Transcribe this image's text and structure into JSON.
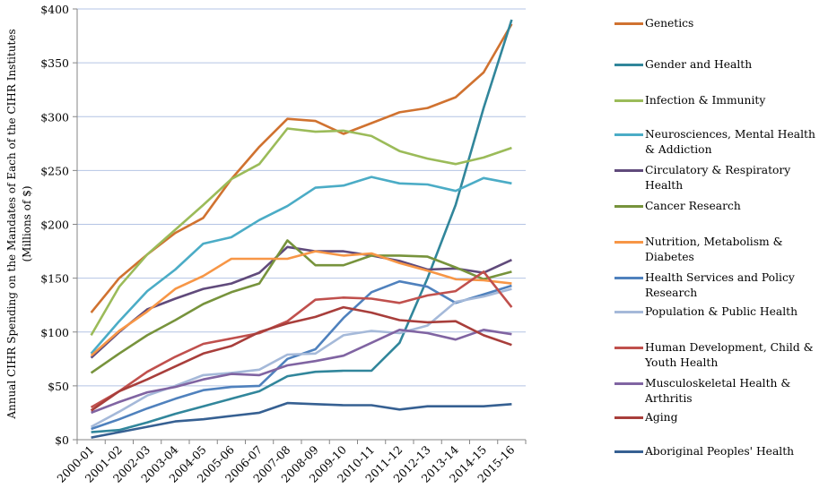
{
  "chart_data": {
    "type": "line",
    "title": "",
    "xlabel": "",
    "ylabel": "Annual CIHR Spending on the Mandates of Each of the CIHR Institutes",
    "ylabel_line2": "(Millions of $)",
    "ylim": [
      0,
      400
    ],
    "yticks": [
      0,
      50,
      100,
      150,
      200,
      250,
      300,
      350,
      400
    ],
    "ytick_labels": [
      "$0",
      "$50",
      "$100",
      "$150",
      "$200",
      "$250",
      "$300",
      "$350",
      "$400"
    ],
    "grid": true,
    "legend_position": "right",
    "categories": [
      "2000-01",
      "2001-02",
      "2002-03",
      "2003-04",
      "2004-05",
      "2005-06",
      "2006-07",
      "2007-08",
      "2008-09",
      "2009-10",
      "2010-11",
      "2011-12",
      "2012-13",
      "2013-14",
      "2014-15",
      "2015-16"
    ],
    "series": [
      {
        "name": "Genetics",
        "color": "#d07230",
        "values": [
          118,
          150,
          172,
          192,
          206,
          242,
          272,
          298,
          296,
          284,
          294,
          304,
          308,
          318,
          341,
          386
        ]
      },
      {
        "name": "Gender and Health",
        "color": "#31869b",
        "values": [
          7,
          9,
          16,
          24,
          31,
          38,
          45,
          59,
          63,
          64,
          64,
          90,
          150,
          218,
          308,
          390
        ]
      },
      {
        "name": "Infection & Immunity",
        "color": "#9bbb59",
        "values": [
          97,
          142,
          172,
          195,
          218,
          242,
          256,
          289,
          286,
          287,
          282,
          268,
          261,
          256,
          262,
          271
        ]
      },
      {
        "name": "Neurosciences, Mental Health & Addiction",
        "color": "#4bacc6",
        "values": [
          80,
          110,
          138,
          158,
          182,
          188,
          204,
          217,
          234,
          236,
          244,
          238,
          237,
          231,
          243,
          238
        ]
      },
      {
        "name": "Circulatory & Respiratory Health",
        "color": "#604a7b",
        "values": [
          76,
          100,
          121,
          131,
          140,
          145,
          155,
          179,
          175,
          175,
          171,
          166,
          158,
          159,
          155,
          167
        ]
      },
      {
        "name": "Cancer Research",
        "color": "#77933c",
        "values": [
          62,
          80,
          97,
          111,
          126,
          137,
          145,
          185,
          162,
          162,
          171,
          171,
          170,
          160,
          149,
          156
        ]
      },
      {
        "name": "Nutrition, Metabolism & Diabetes",
        "color": "#f79646",
        "values": [
          78,
          101,
          119,
          140,
          152,
          168,
          168,
          168,
          175,
          171,
          173,
          164,
          157,
          149,
          148,
          145
        ]
      },
      {
        "name": "Health Services and Policy Research",
        "color": "#4f81bd",
        "values": [
          10,
          19,
          29,
          38,
          46,
          49,
          50,
          75,
          84,
          113,
          137,
          147,
          142,
          127,
          135,
          143
        ]
      },
      {
        "name": "Population & Public Health",
        "color": "#a5b9d9",
        "values": [
          12,
          26,
          41,
          50,
          60,
          62,
          65,
          79,
          80,
          97,
          101,
          99,
          106,
          128,
          133,
          140
        ]
      },
      {
        "name": "Human Development, Child & Youth Health",
        "color": "#c0504d",
        "values": [
          30,
          45,
          63,
          77,
          89,
          94,
          99,
          110,
          130,
          132,
          131,
          127,
          134,
          138,
          156,
          123
        ]
      },
      {
        "name": "Musculoskeletal Health & Arthritis",
        "color": "#8064a2",
        "values": [
          25,
          35,
          44,
          49,
          56,
          61,
          60,
          69,
          73,
          78,
          90,
          102,
          99,
          93,
          102,
          98
        ]
      },
      {
        "name": "Aging",
        "color": "#a83e3b",
        "values": [
          27,
          45,
          56,
          68,
          80,
          87,
          100,
          108,
          114,
          123,
          118,
          111,
          109,
          110,
          97,
          88
        ]
      },
      {
        "name": "Aboriginal Peoples' Health",
        "color": "#366092",
        "values": [
          2,
          7,
          12,
          17,
          19,
          22,
          25,
          34,
          33,
          32,
          32,
          28,
          31,
          31,
          31,
          33
        ]
      }
    ]
  }
}
